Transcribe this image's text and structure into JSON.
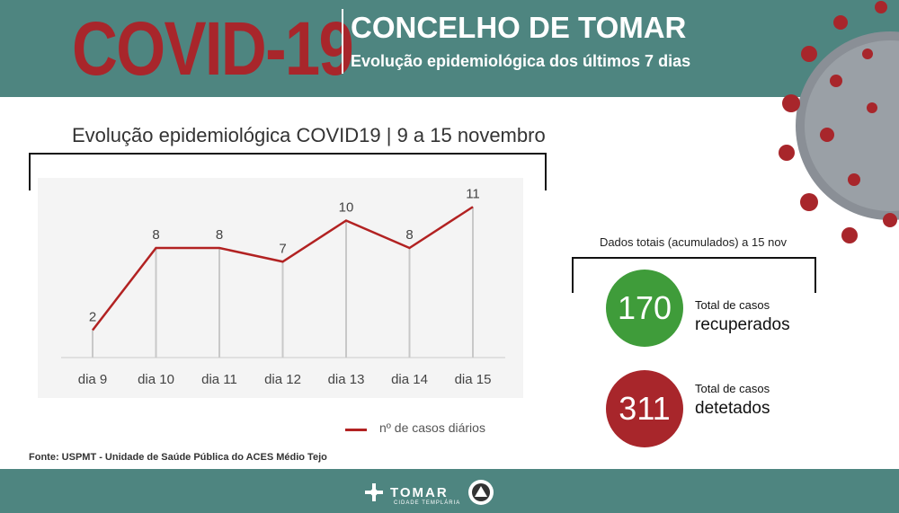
{
  "header": {
    "big_title": "COVID-19",
    "title": "CONCELHO DE TOMAR",
    "subtitle": "Evolução epidemiológica dos últimos 7 dias"
  },
  "chart_data": {
    "type": "line",
    "title": "Evolução epidemiológica COVID19 | 9 a 15 novembro",
    "categories": [
      "dia 9",
      "dia 10",
      "dia 11",
      "dia 12",
      "dia 13",
      "dia 14",
      "dia 15"
    ],
    "series": [
      {
        "name": "nº de casos diários",
        "values": [
          2,
          8,
          8,
          7,
          10,
          8,
          11
        ],
        "color": "#b22222"
      }
    ],
    "ylim": [
      0,
      12
    ],
    "grid": "vertical drop lines",
    "legend": "bottom-right"
  },
  "source": "Fonte: USPMT - Unidade de Saúde Pública do ACES Médio Tejo",
  "totals": {
    "title": "Dados totais (acumulados) a 15 nov",
    "recovered": {
      "value": "170",
      "label_small": "Total de casos",
      "label_big": "recuperados",
      "color": "#3f9c3a"
    },
    "detected": {
      "value": "311",
      "label_small": "Total de casos",
      "label_big": "detetados",
      "color": "#a8262b"
    }
  },
  "footer": {
    "logo_text": "TOMAR",
    "logo_sub": "CIDADE TEMPLÁRIA"
  },
  "colors": {
    "header_bg": "#4e8580",
    "accent_red": "#a8262b"
  }
}
